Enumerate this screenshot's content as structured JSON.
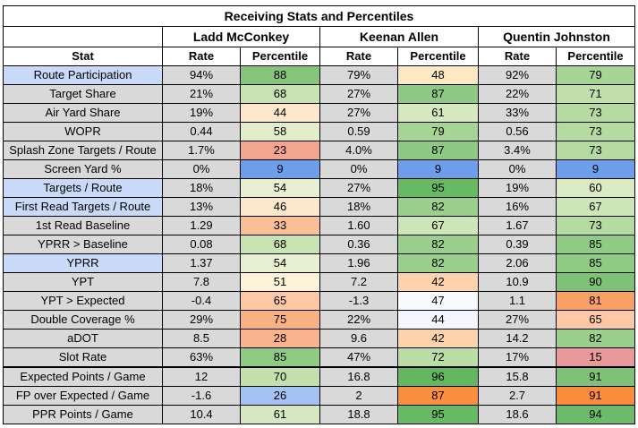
{
  "title": "Receiving Stats and Percentiles",
  "players": [
    "Ladd McConkey",
    "Keenan Allen",
    "Quentin Johnston"
  ],
  "headers": {
    "stat": "Stat",
    "rate": "Rate",
    "percentile": "Percentile"
  },
  "colors": {
    "p9": "#6d9eeb",
    "p15": "#ea9999",
    "p23": "#f4a58f",
    "p26": "#a4c2f4",
    "p28": "#f9b48d",
    "p33": "#fbbf97",
    "p42": "#fcd3aa",
    "p44": "#f3f6fe",
    "p46": "#fde8cc",
    "p47": "#f8fafe",
    "p48": "#fde9c4",
    "p51": "#fdf3d8",
    "p54": "#e9f0d2",
    "p58": "#e2eecb",
    "p60": "#dbeac4",
    "p61": "#d6e9c0",
    "p65": "#fcc8a6",
    "p67": "#cde5b7",
    "p68": "#c9e3b2",
    "p70": "#c4e1ad",
    "p71": "#c0dfaa",
    "p72": "#bbdda6",
    "p73": "#b6dba2",
    "p75": "#f9b183",
    "p79": "#a5d494",
    "p81": "#f9a066",
    "p82": "#9bd08c",
    "p85": "#90cb84",
    "p87": "#fa8f40",
    "p87g": "#8dc982",
    "p88": "#88c57c",
    "p90": "#7ec276",
    "p91": "#fb8c3b",
    "p94": "#6cbb68",
    "p95": "#68b964",
    "p96": "#63b761"
  },
  "rows": [
    {
      "stat": "Route Participation",
      "hl": true,
      "cells": [
        [
          "94%",
          "88",
          "p88"
        ],
        [
          "79%",
          "48",
          "p48"
        ],
        [
          "92%",
          "79",
          "p79"
        ]
      ]
    },
    {
      "stat": "Target Share",
      "hl": false,
      "cells": [
        [
          "21%",
          "68",
          "p68"
        ],
        [
          "27%",
          "87",
          "p87g"
        ],
        [
          "22%",
          "71",
          "p71"
        ]
      ]
    },
    {
      "stat": "Air Yard Share",
      "hl": false,
      "cells": [
        [
          "19%",
          "44",
          "p46"
        ],
        [
          "27%",
          "61",
          "p61"
        ],
        [
          "33%",
          "73",
          "p73"
        ]
      ]
    },
    {
      "stat": "WOPR",
      "hl": false,
      "cells": [
        [
          "0.44",
          "58",
          "p58"
        ],
        [
          "0.59",
          "79",
          "p79"
        ],
        [
          "0.56",
          "73",
          "p73"
        ]
      ]
    },
    {
      "stat": "Splash Zone Targets / Route",
      "hl": false,
      "cells": [
        [
          "1.7%",
          "23",
          "p23"
        ],
        [
          "4.0%",
          "87",
          "p87g"
        ],
        [
          "3.4%",
          "73",
          "p73"
        ]
      ]
    },
    {
      "stat": "Screen Yard %",
      "hl": false,
      "cells": [
        [
          "0%",
          "9",
          "p9"
        ],
        [
          "0%",
          "9",
          "p9"
        ],
        [
          "0%",
          "9",
          "p9"
        ]
      ]
    },
    {
      "stat": "Targets / Route",
      "hl": true,
      "cells": [
        [
          "18%",
          "54",
          "p54"
        ],
        [
          "27%",
          "95",
          "p95"
        ],
        [
          "19%",
          "60",
          "p60"
        ]
      ]
    },
    {
      "stat": "First Read Targets / Route",
      "hl": true,
      "cells": [
        [
          "13%",
          "46",
          "p46"
        ],
        [
          "18%",
          "82",
          "p82"
        ],
        [
          "16%",
          "67",
          "p67"
        ]
      ]
    },
    {
      "stat": "1st Read Baseline",
      "hl": false,
      "cells": [
        [
          "1.29",
          "33",
          "p33"
        ],
        [
          "1.60",
          "67",
          "p67"
        ],
        [
          "1.67",
          "73",
          "p73"
        ]
      ]
    },
    {
      "stat": "YPRR > Baseline",
      "hl": false,
      "cells": [
        [
          "0.08",
          "68",
          "p68"
        ],
        [
          "0.36",
          "82",
          "p82"
        ],
        [
          "0.39",
          "85",
          "p85"
        ]
      ]
    },
    {
      "stat": "YPRR",
      "hl": true,
      "cells": [
        [
          "1.37",
          "54",
          "p54"
        ],
        [
          "1.96",
          "82",
          "p82"
        ],
        [
          "2.06",
          "85",
          "p85"
        ]
      ]
    },
    {
      "stat": "YPT",
      "hl": false,
      "cells": [
        [
          "7.8",
          "51",
          "p51"
        ],
        [
          "7.2",
          "42",
          "p42"
        ],
        [
          "10.9",
          "90",
          "p90"
        ]
      ]
    },
    {
      "stat": "YPT > Expected",
      "hl": false,
      "cells": [
        [
          "-0.4",
          "65",
          "p65"
        ],
        [
          "-1.3",
          "47",
          "p47"
        ],
        [
          "1.1",
          "81",
          "p81"
        ]
      ]
    },
    {
      "stat": "Double Coverage %",
      "hl": false,
      "cells": [
        [
          "29%",
          "75",
          "p75"
        ],
        [
          "22%",
          "44",
          "p44"
        ],
        [
          "27%",
          "65",
          "p65"
        ]
      ]
    },
    {
      "stat": "aDOT",
      "hl": false,
      "cells": [
        [
          "8.5",
          "28",
          "p28"
        ],
        [
          "9.6",
          "42",
          "p42"
        ],
        [
          "14.2",
          "82",
          "p82"
        ]
      ]
    },
    {
      "stat": "Slot Rate",
      "hl": false,
      "cells": [
        [
          "63%",
          "85",
          "p85"
        ],
        [
          "47%",
          "72",
          "p72"
        ],
        [
          "17%",
          "15",
          "p15"
        ]
      ]
    },
    {
      "stat": "Expected Points / Game",
      "hl": false,
      "thick": true,
      "cells": [
        [
          "12",
          "70",
          "p70"
        ],
        [
          "16.8",
          "96",
          "p96"
        ],
        [
          "15.8",
          "91",
          "p90"
        ]
      ]
    },
    {
      "stat": "FP over Expected / Game",
      "hl": false,
      "cells": [
        [
          "-1.6",
          "26",
          "p26"
        ],
        [
          "2",
          "87",
          "p87"
        ],
        [
          "2.7",
          "91",
          "p91"
        ]
      ]
    },
    {
      "stat": "PPR Points / Game",
      "hl": false,
      "cells": [
        [
          "10.4",
          "61",
          "p61"
        ],
        [
          "18.8",
          "95",
          "p95"
        ],
        [
          "18.6",
          "94",
          "p94"
        ]
      ]
    }
  ]
}
